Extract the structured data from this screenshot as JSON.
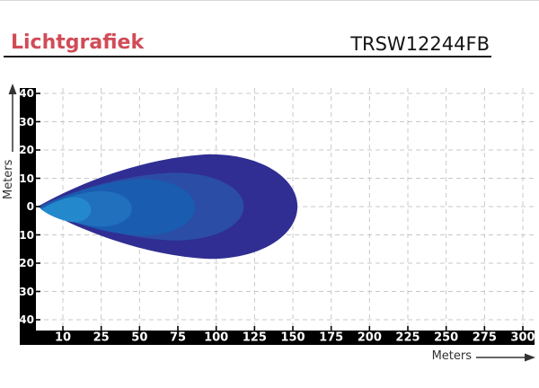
{
  "header": {
    "title": "Lichtgrafiek",
    "product_code": "TRSW12244FB"
  },
  "colors": {
    "title_red": "#d14b57",
    "axis_bar": "#000000",
    "grid": "#c8c8c8",
    "caption_text": "#333333"
  },
  "chart_data": {
    "type": "area",
    "title": "Lichtgrafiek",
    "subtitle": "TRSW12244FB",
    "xlabel": "Meters",
    "ylabel": "Meters",
    "grid": true,
    "x_ticks": [
      10,
      25,
      50,
      75,
      100,
      125,
      150,
      175,
      200,
      225,
      250,
      275,
      300
    ],
    "y_tick_values": [
      40,
      30,
      20,
      10,
      0,
      -10,
      -20,
      -30,
      -40
    ],
    "y_tick_labels": [
      "40",
      "30",
      "20",
      "10",
      "0",
      "10",
      "20",
      "30",
      "40"
    ],
    "xlim": [
      0,
      305
    ],
    "ylim": [
      -43,
      43
    ],
    "beam_zones": [
      {
        "name": "zone-5-outer",
        "reach_m": 153,
        "half_width_m": 18.5,
        "start_m": 0.1,
        "center_offset_m": 0,
        "color": "#302e92"
      },
      {
        "name": "zone-4",
        "reach_m": 118,
        "half_width_m": 12.0,
        "start_m": 0.4,
        "center_offset_m": 0,
        "color": "#2b4da5"
      },
      {
        "name": "zone-3",
        "reach_m": 86,
        "half_width_m": 10.0,
        "start_m": 0.8,
        "center_offset_m": 0.3,
        "color": "#1a5cb0"
      },
      {
        "name": "zone-2",
        "reach_m": 45,
        "half_width_m": 6.3,
        "start_m": 1.2,
        "center_offset_m": 0.8,
        "color": "#2070bd"
      },
      {
        "name": "zone-1-inner",
        "reach_m": 21,
        "half_width_m": 4.4,
        "start_m": 1.6,
        "center_offset_m": 1.1,
        "color": "#2489cc"
      }
    ]
  }
}
